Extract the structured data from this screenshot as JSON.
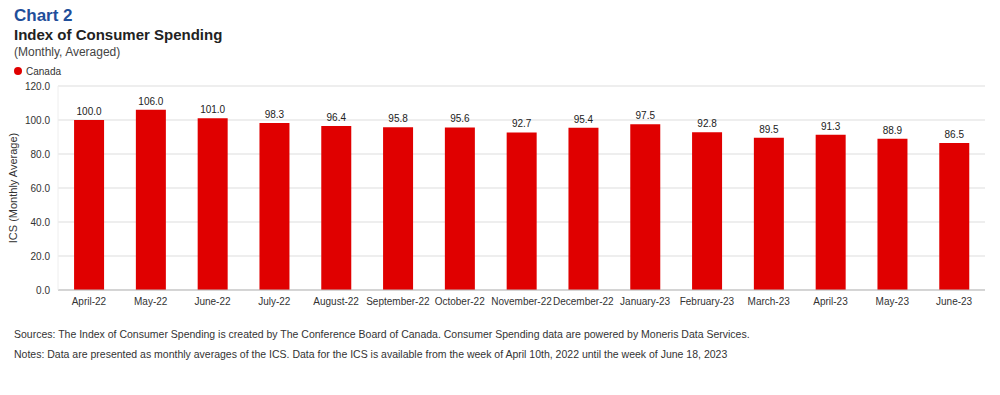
{
  "chart_data": {
    "type": "bar",
    "figure_label": "Chart 2",
    "title": "Index of Consumer Spending",
    "subtitle": "(Monthly, Averaged)",
    "y_label": "ICS (Monthly Average)",
    "categories": [
      "April-22",
      "May-22",
      "June-22",
      "July-22",
      "August-22",
      "September-22",
      "October-22",
      "November-22",
      "December-22",
      "January-23",
      "February-23",
      "March-23",
      "April-23",
      "May-23",
      "June-23"
    ],
    "series": [
      {
        "name": "Canada",
        "color": "#e00000",
        "values": [
          100.0,
          106.0,
          101.0,
          98.3,
          96.4,
          95.8,
          95.6,
          92.7,
          95.4,
          97.5,
          92.8,
          89.5,
          91.3,
          88.9,
          86.5
        ],
        "value_labels": [
          "100.0",
          "106.0",
          "101.0",
          "98.3",
          "96.4",
          "95.8",
          "95.6",
          "92.7",
          "95.4",
          "97.5",
          "92.8",
          "89.5",
          "91.3",
          "88.9",
          "86.5"
        ]
      }
    ],
    "ylim": [
      0,
      120
    ],
    "yticks": [
      {
        "value": 0,
        "label": "0.0"
      },
      {
        "value": 20,
        "label": "20.0"
      },
      {
        "value": 40,
        "label": "40.0"
      },
      {
        "value": 60,
        "label": "60.0"
      },
      {
        "value": 80,
        "label": "80.0"
      },
      {
        "value": 100,
        "label": "100.0"
      },
      {
        "value": 120,
        "label": "120.0"
      }
    ],
    "grid": true,
    "legend": "top left",
    "data_labels": true,
    "annotations": [
      "Sources: The Index of Consumer Spending is created by The Conference Board of Canada. Consumer Spending data are powered by Moneris Data Services.",
      "Notes: Data are presented as monthly averages of the ICS. Data for the ICS is available from the week of April 10th, 2022 until the week of June 18, 2023"
    ]
  }
}
